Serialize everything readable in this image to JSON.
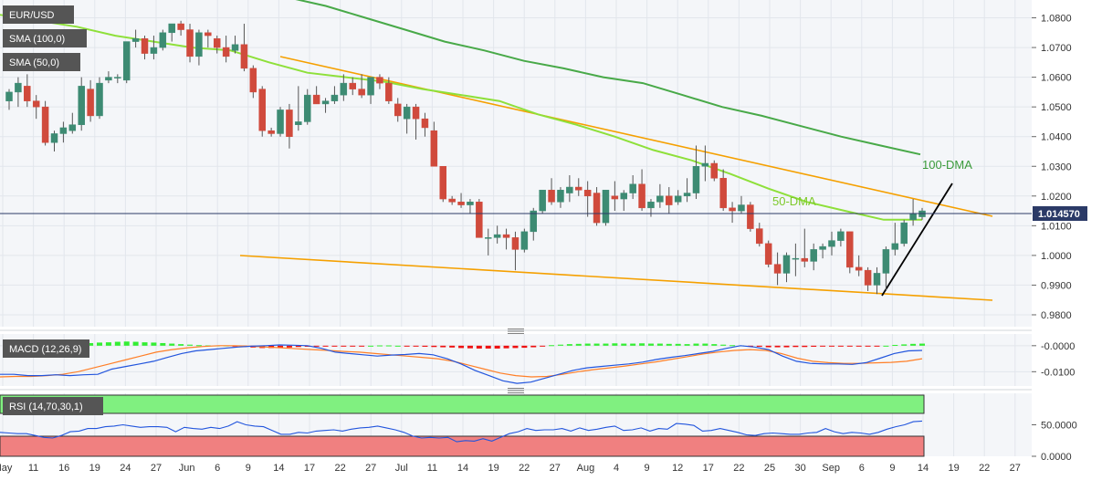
{
  "chart_data": [
    {
      "type": "candlestick",
      "symbol": "EUR/USD",
      "current_price": "1.014570",
      "ylim": [
        0.976,
        1.086
      ],
      "y_ticks": [
        "1.0800",
        "1.0700",
        "1.0600",
        "1.0500",
        "1.0400",
        "1.0300",
        "1.0200",
        "1.0100",
        "1.0000",
        "0.9900",
        "0.9800"
      ],
      "x_ticks": [
        "May",
        "11",
        "16",
        "19",
        "24",
        "27",
        "Jun",
        "6",
        "9",
        "14",
        "17",
        "22",
        "27",
        "Jul",
        "11",
        "14",
        "19",
        "22",
        "27",
        "Aug",
        "4",
        "9",
        "12",
        "17",
        "22",
        "25",
        "30",
        "Sep",
        "6",
        "9",
        "14",
        "19",
        "22",
        "27"
      ],
      "legend": [
        "SMA (100,0)",
        "SMA (50,0)"
      ],
      "annotations": [
        "100-DMA",
        "50-DMA"
      ],
      "candles": [
        [
          1.052,
          1.056,
          1.049,
          1.055
        ],
        [
          1.055,
          1.06,
          1.05,
          1.058
        ],
        [
          1.057,
          1.061,
          1.05,
          1.052
        ],
        [
          1.052,
          1.054,
          1.046,
          1.05
        ],
        [
          1.05,
          1.052,
          1.037,
          1.038
        ],
        [
          1.038,
          1.042,
          1.035,
          1.041
        ],
        [
          1.041,
          1.045,
          1.038,
          1.043
        ],
        [
          1.042,
          1.048,
          1.041,
          1.044
        ],
        [
          1.044,
          1.06,
          1.042,
          1.057
        ],
        [
          1.056,
          1.059,
          1.045,
          1.047
        ],
        [
          1.047,
          1.06,
          1.046,
          1.058
        ],
        [
          1.059,
          1.062,
          1.058,
          1.06
        ],
        [
          1.06,
          1.061,
          1.058,
          1.06
        ],
        [
          1.059,
          1.072,
          1.058,
          1.072
        ],
        [
          1.072,
          1.076,
          1.07,
          1.073
        ],
        [
          1.073,
          1.074,
          1.066,
          1.068
        ],
        [
          1.068,
          1.074,
          1.066,
          1.07
        ],
        [
          1.07,
          1.076,
          1.069,
          1.075
        ],
        [
          1.075,
          1.077,
          1.072,
          1.078
        ],
        [
          1.078,
          1.079,
          1.074,
          1.076
        ],
        [
          1.076,
          1.078,
          1.065,
          1.067
        ],
        [
          1.067,
          1.076,
          1.064,
          1.075
        ],
        [
          1.075,
          1.076,
          1.07,
          1.074
        ],
        [
          1.073,
          1.074,
          1.068,
          1.07
        ],
        [
          1.07,
          1.074,
          1.065,
          1.067
        ],
        [
          1.069,
          1.074,
          1.068,
          1.071
        ],
        [
          1.071,
          1.078,
          1.062,
          1.063
        ],
        [
          1.063,
          1.064,
          1.053,
          1.055
        ],
        [
          1.056,
          1.057,
          1.04,
          1.042
        ],
        [
          1.042,
          1.043,
          1.04,
          1.041
        ],
        [
          1.041,
          1.05,
          1.04,
          1.049
        ],
        [
          1.049,
          1.051,
          1.036,
          1.04
        ],
        [
          1.044,
          1.057,
          1.042,
          1.045
        ],
        [
          1.045,
          1.056,
          1.044,
          1.054
        ],
        [
          1.054,
          1.057,
          1.051,
          1.051
        ],
        [
          1.051,
          1.053,
          1.048,
          1.052
        ],
        [
          1.052,
          1.057,
          1.051,
          1.054
        ],
        [
          1.054,
          1.061,
          1.052,
          1.058
        ],
        [
          1.058,
          1.06,
          1.054,
          1.056
        ],
        [
          1.056,
          1.061,
          1.053,
          1.054
        ],
        [
          1.054,
          1.06,
          1.051,
          1.06
        ],
        [
          1.06,
          1.061,
          1.056,
          1.058
        ],
        [
          1.058,
          1.06,
          1.051,
          1.052
        ],
        [
          1.051,
          1.053,
          1.045,
          1.047
        ],
        [
          1.046,
          1.051,
          1.041,
          1.05
        ],
        [
          1.05,
          1.051,
          1.039,
          1.046
        ],
        [
          1.046,
          1.048,
          1.04,
          1.043
        ],
        [
          1.042,
          1.045,
          1.03,
          1.03
        ],
        [
          1.03,
          1.03,
          1.018,
          1.019
        ],
        [
          1.019,
          1.02,
          1.017,
          1.018
        ],
        [
          1.018,
          1.021,
          1.016,
          1.017
        ],
        [
          1.017,
          1.019,
          1.014,
          1.018
        ],
        [
          1.018,
          1.019,
          1.006,
          1.006
        ],
        [
          1.006,
          1.009,
          1.0,
          1.006
        ],
        [
          1.006,
          1.01,
          1.004,
          1.007
        ],
        [
          1.007,
          1.009,
          1.002,
          1.006
        ],
        [
          1.006,
          1.008,
          0.995,
          1.002
        ],
        [
          1.002,
          1.009,
          1.001,
          1.008
        ],
        [
          1.008,
          1.016,
          1.005,
          1.015
        ],
        [
          1.015,
          1.022,
          1.014,
          1.022
        ],
        [
          1.022,
          1.026,
          1.017,
          1.018
        ],
        [
          1.018,
          1.023,
          1.016,
          1.022
        ],
        [
          1.021,
          1.027,
          1.018,
          1.023
        ],
        [
          1.023,
          1.026,
          1.02,
          1.022
        ],
        [
          1.022,
          1.025,
          1.013,
          1.02
        ],
        [
          1.021,
          1.023,
          1.01,
          1.011
        ],
        [
          1.011,
          1.022,
          1.01,
          1.022
        ],
        [
          1.02,
          1.025,
          1.015,
          1.019
        ],
        [
          1.019,
          1.022,
          1.015,
          1.021
        ],
        [
          1.021,
          1.027,
          1.019,
          1.024
        ],
        [
          1.024,
          1.029,
          1.015,
          1.016
        ],
        [
          1.016,
          1.019,
          1.013,
          1.018
        ],
        [
          1.018,
          1.024,
          1.016,
          1.02
        ],
        [
          1.02,
          1.023,
          1.014,
          1.017
        ],
        [
          1.018,
          1.022,
          1.017,
          1.02
        ],
        [
          1.02,
          1.026,
          1.018,
          1.021
        ],
        [
          1.021,
          1.037,
          1.019,
          1.03
        ],
        [
          1.03,
          1.037,
          1.025,
          1.031
        ],
        [
          1.031,
          1.032,
          1.025,
          1.026
        ],
        [
          1.026,
          1.029,
          1.015,
          1.016
        ],
        [
          1.016,
          1.018,
          1.011,
          1.015
        ],
        [
          1.015,
          1.02,
          1.014,
          1.017
        ],
        [
          1.017,
          1.018,
          1.008,
          1.009
        ],
        [
          1.009,
          1.011,
          1.003,
          1.004
        ],
        [
          1.004,
          1.005,
          0.996,
          0.997
        ],
        [
          0.997,
          1.001,
          0.99,
          0.994
        ],
        [
          0.994,
          1.001,
          0.991,
          1.0
        ],
        [
          0.999,
          1.004,
          0.993,
          0.999
        ],
        [
          0.999,
          1.009,
          0.996,
          0.998
        ],
        [
          0.998,
          1.004,
          0.995,
          1.002
        ],
        [
          1.002,
          1.004,
          0.999,
          1.003
        ],
        [
          1.003,
          1.008,
          1.0,
          1.005
        ],
        [
          1.005,
          1.009,
          1.003,
          1.008
        ],
        [
          1.008,
          1.008,
          0.994,
          0.996
        ],
        [
          0.996,
          1.0,
          0.993,
          0.995
        ],
        [
          0.995,
          0.996,
          0.988,
          0.99
        ],
        [
          0.99,
          0.996,
          0.987,
          0.994
        ],
        [
          0.994,
          1.003,
          0.988,
          1.002
        ],
        [
          1.002,
          1.011,
          1.0,
          1.004
        ],
        [
          1.004,
          1.012,
          1.003,
          1.011
        ],
        [
          1.012,
          1.019,
          1.01,
          1.014
        ],
        [
          1.013,
          1.016,
          1.012,
          1.015
        ]
      ],
      "sma100": [
        1.09,
        1.087,
        1.084,
        1.08,
        1.076,
        1.072,
        1.069,
        1.0655,
        1.063,
        1.06,
        1.058,
        1.054,
        1.05,
        1.047,
        1.0435,
        1.04,
        1.037,
        1.034
      ],
      "sma50": [
        1.081,
        1.079,
        1.077,
        1.074,
        1.072,
        1.07,
        1.069,
        1.065,
        1.0615,
        1.06,
        1.0585,
        1.056,
        1.054,
        1.052,
        1.0475,
        1.044,
        1.04,
        1.0355,
        1.032,
        1.0275,
        1.0225,
        1.018,
        1.015,
        1.012,
        1.012
      ]
    },
    {
      "type": "histogram+line",
      "name": "MACD",
      "legend": "MACD (12,26,9)",
      "y_ticks": [
        "-0.0000",
        "-0.0100"
      ],
      "ylim": [
        -0.0155,
        0.0045
      ],
      "histogram": [
        0.0001,
        0.0001,
        0.0002,
        0.0002,
        0.0002,
        0.0003,
        0.0004,
        0.0005,
        0.0008,
        0.001,
        0.0012,
        0.0013,
        0.0015,
        0.0016,
        0.0015,
        0.0013,
        0.0012,
        0.001,
        0.0008,
        0.0006,
        0.0004,
        0.0002,
        0.0001,
        0.0001,
        0.0001,
        -0.0003,
        -0.0005,
        -0.0007,
        -0.0009,
        -0.0009,
        -0.0008,
        -0.0007,
        -0.0005,
        -0.0004,
        -0.0003,
        -0.0002,
        -0.0001,
        -0.0001,
        -0.0001,
        -0.0001,
        0.0,
        0.0001,
        0.0001,
        0.0,
        -0.0002,
        -0.0003,
        -0.0004,
        -0.0005,
        -0.0006,
        -0.0007,
        -0.0009,
        -0.001,
        -0.0011,
        -0.0011,
        -0.0011,
        -0.001,
        -0.0009,
        -0.0008,
        -0.0006,
        -0.0003,
        0.0002,
        0.0004,
        0.0006,
        0.0007,
        0.0008,
        0.0008,
        0.0008,
        0.0009,
        0.0008,
        0.0008,
        0.0009,
        0.0008,
        0.0008,
        0.0007,
        0.0007,
        0.0006,
        0.0008,
        0.0008,
        0.0006,
        0.0004,
        0.0002,
        0.0001,
        -0.0002,
        -0.0004,
        -0.0006,
        -0.0006,
        -0.0006,
        -0.0005,
        -0.0005,
        -0.0004,
        -0.0003,
        -0.0002,
        -0.0002,
        -0.0002,
        -0.0002,
        -0.0002,
        -0.0002,
        0.0,
        0.0003,
        0.0005,
        0.0007,
        0.0008
      ],
      "macd": [
        -0.011,
        -0.011,
        -0.0115,
        -0.0115,
        -0.0112,
        -0.0115,
        -0.0112,
        -0.011,
        -0.009,
        -0.008,
        -0.007,
        -0.006,
        -0.0045,
        -0.003,
        -0.002,
        -0.0015,
        -0.001,
        -0.0005,
        -0.0002,
        0.0,
        0.0003,
        0.0002,
        0.0,
        -0.001,
        -0.0025,
        -0.003,
        -0.0035,
        -0.004,
        -0.0036,
        -0.0034,
        -0.003,
        -0.0035,
        -0.005,
        -0.007,
        -0.0095,
        -0.0115,
        -0.0135,
        -0.0145,
        -0.014,
        -0.0125,
        -0.011,
        -0.0095,
        -0.0085,
        -0.008,
        -0.0075,
        -0.007,
        -0.0063,
        -0.0053,
        -0.0045,
        -0.0038,
        -0.003,
        -0.0022,
        -0.001,
        0.0,
        -0.0005,
        -0.0015,
        -0.004,
        -0.006,
        -0.0068,
        -0.007,
        -0.007,
        -0.0072,
        -0.0065,
        -0.0048,
        -0.003,
        -0.002,
        -0.0018
      ],
      "signal": [
        -0.012,
        -0.0118,
        -0.0118,
        -0.0115,
        -0.011,
        -0.01,
        -0.0085,
        -0.007,
        -0.0055,
        -0.004,
        -0.0025,
        -0.0015,
        -0.0008,
        -0.0003,
        0.0,
        0.0,
        -0.0002,
        -0.0005,
        -0.0008,
        -0.0012,
        -0.0015,
        -0.0018,
        -0.0022,
        -0.0025,
        -0.003,
        -0.0035,
        -0.004,
        -0.0045,
        -0.005,
        -0.006,
        -0.0075,
        -0.009,
        -0.0105,
        -0.0115,
        -0.012,
        -0.0118,
        -0.011,
        -0.01,
        -0.0092,
        -0.0085,
        -0.0078,
        -0.007,
        -0.0062,
        -0.0052,
        -0.0042,
        -0.0032,
        -0.0024,
        -0.0018,
        -0.0015,
        -0.0018,
        -0.003,
        -0.0048,
        -0.006,
        -0.0065,
        -0.0068,
        -0.0068,
        -0.0066,
        -0.0064,
        -0.006,
        -0.005
      ]
    },
    {
      "type": "line",
      "name": "RSI",
      "legend": "RSI (14,70,30,1)",
      "y_ticks": [
        "50.0000",
        "0.0000"
      ],
      "ylim": [
        0,
        100
      ],
      "overbought": 70,
      "oversold": 30,
      "values": [
        38,
        37,
        36,
        36,
        33,
        30,
        29,
        33,
        39,
        40,
        44,
        44,
        47,
        48,
        50,
        48,
        46,
        47,
        47,
        46,
        39,
        46,
        44,
        43,
        46,
        44,
        48,
        55,
        50,
        48,
        47,
        41,
        35,
        35,
        38,
        37,
        40,
        41,
        42,
        40,
        43,
        45,
        46,
        48,
        45,
        42,
        38,
        32,
        29,
        30,
        29,
        30,
        23,
        25,
        24,
        28,
        24,
        30,
        36,
        39,
        44,
        41,
        42,
        42,
        44,
        40,
        45,
        41,
        43,
        46,
        48,
        41,
        42,
        45,
        40,
        44,
        43,
        52,
        51,
        49,
        40,
        41,
        44,
        41,
        38,
        34,
        33,
        36,
        37,
        36,
        35,
        35,
        37,
        38,
        44,
        39,
        36,
        38,
        37,
        35,
        38,
        43,
        47,
        50,
        55,
        56
      ]
    }
  ]
}
